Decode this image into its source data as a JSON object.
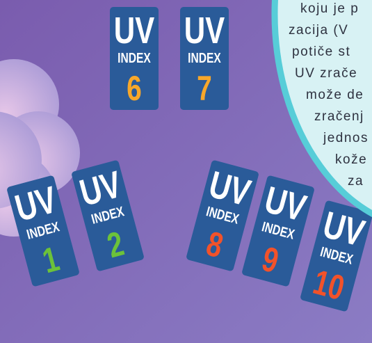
{
  "cards": [
    {
      "title": "UV",
      "label": "INDEX",
      "number": 6,
      "color": "#f7a72a"
    },
    {
      "title": "UV",
      "label": "INDEX",
      "number": 7,
      "color": "#f7a72a"
    },
    {
      "title": "UV",
      "label": "INDEX",
      "number": 1,
      "color": "#6cc23a"
    },
    {
      "title": "UV",
      "label": "INDEX",
      "number": 2,
      "color": "#6cc23a"
    },
    {
      "title": "UV",
      "label": "INDEX",
      "number": 8,
      "color": "#f2522a"
    },
    {
      "title": "UV",
      "label": "INDEX",
      "number": 9,
      "color": "#f2522a"
    },
    {
      "title": "UV",
      "label": "INDEX",
      "number": 10,
      "color": "#f2522a"
    }
  ],
  "bubble": {
    "lines": [
      "koju je p",
      "zacija (V",
      "potiče st",
      "UV zrače",
      "može de",
      "zračenj",
      "jednos",
      "kože",
      "za"
    ]
  }
}
